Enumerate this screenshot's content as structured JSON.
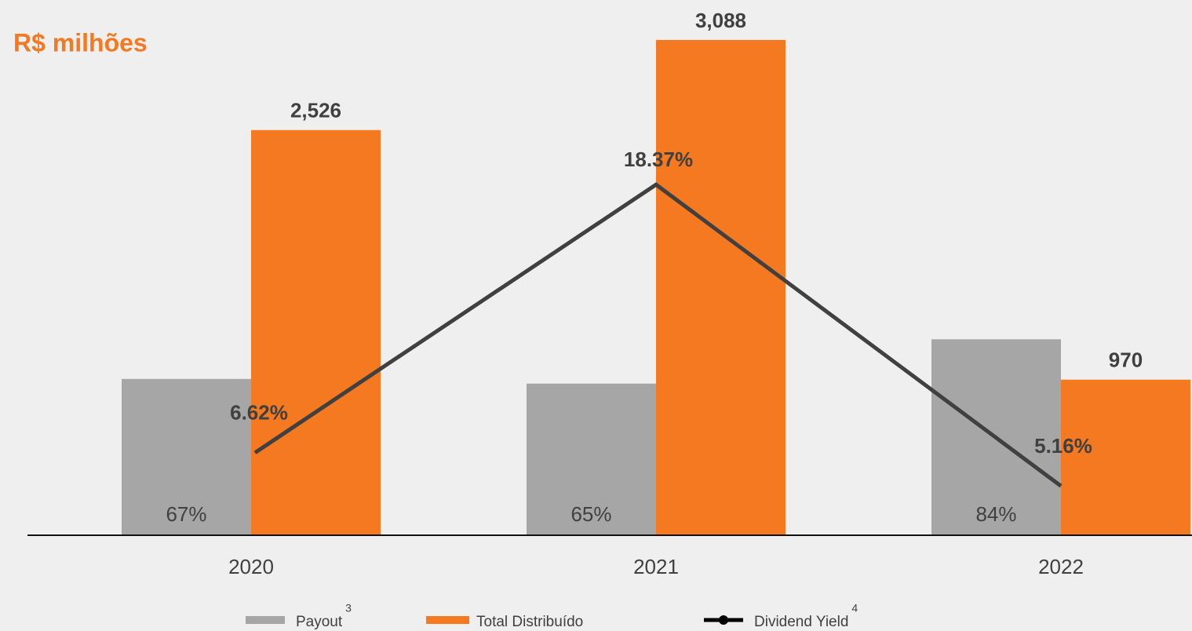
{
  "chart_data": {
    "type": "bar-line",
    "title": "R$ milhões",
    "categories": [
      "2020",
      "2021",
      "2022"
    ],
    "series": [
      {
        "name": "Payout",
        "footnote": "3",
        "color": "#a6a6a6",
        "axis": "y2",
        "values": [
          67,
          65,
          84
        ],
        "value_labels": [
          "67%",
          "65%",
          "84%"
        ]
      },
      {
        "name": "Total Distribuído",
        "color": "#f47920",
        "values": [
          2526,
          3088,
          970
        ],
        "value_labels": [
          "2,526",
          "3,088",
          "970"
        ]
      },
      {
        "name": "Dividend Yield",
        "footnote": "4",
        "color": "#404040",
        "axis": "y3",
        "values": [
          6.62,
          18.37,
          5.16
        ],
        "value_labels": [
          "6.62%",
          "18.37%",
          "5.16%"
        ]
      }
    ],
    "ylim": [
      0,
      3200
    ],
    "y2lim": [
      0,
      220
    ],
    "y3lim": [
      3,
      25.5
    ],
    "legend": "bottom"
  }
}
